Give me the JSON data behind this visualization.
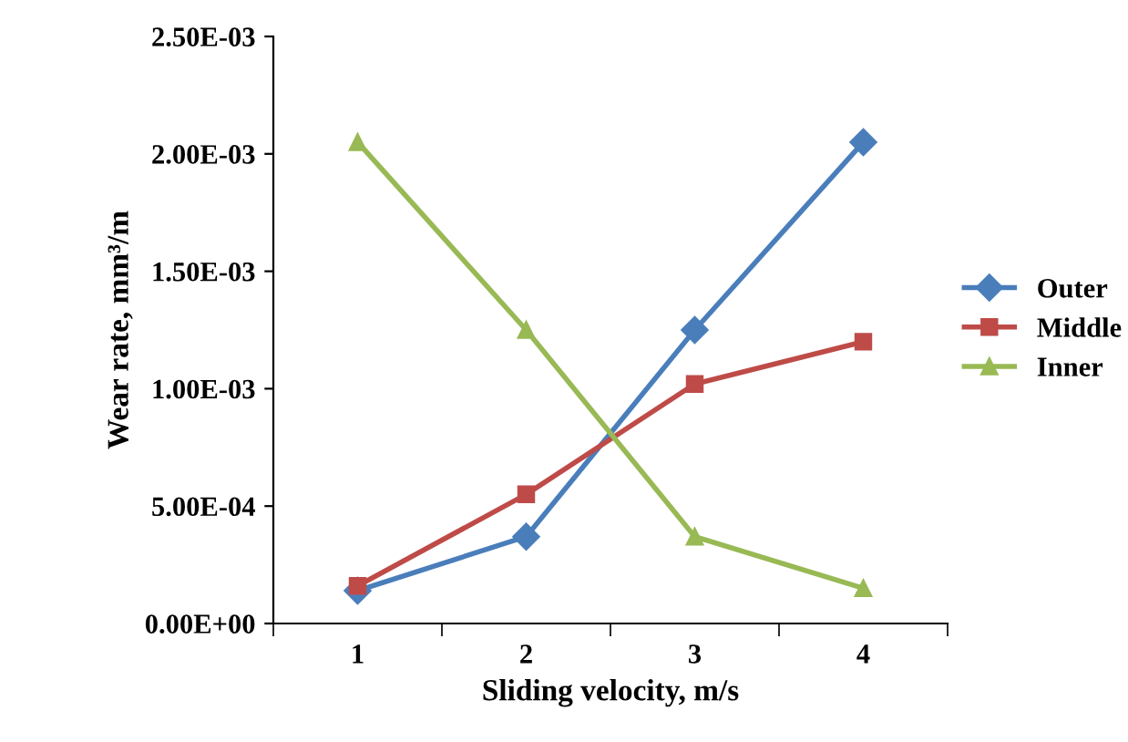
{
  "chart_data": {
    "type": "line",
    "xlabel": "Sliding velocity, m/s",
    "ylabel": "Wear rate, mm³/m",
    "categories": [
      "1",
      "2",
      "3",
      "4"
    ],
    "series": [
      {
        "name": "Outer",
        "color": "#4a7ebb",
        "marker": "diamond",
        "values": [
          0.00014,
          0.00037,
          0.00125,
          0.00205
        ]
      },
      {
        "name": "Middle",
        "color": "#be4b48",
        "marker": "square",
        "values": [
          0.00016,
          0.00055,
          0.00102,
          0.0012
        ]
      },
      {
        "name": "Inner",
        "color": "#98b954",
        "marker": "triangle",
        "values": [
          0.00205,
          0.00125,
          0.00037,
          0.00015
        ]
      }
    ],
    "ylim": [
      0,
      0.0025
    ],
    "yticks": [
      {
        "value": 0,
        "label": "0.00E+00"
      },
      {
        "value": 0.0005,
        "label": "5.00E-04"
      },
      {
        "value": 0.001,
        "label": "1.00E-03"
      },
      {
        "value": 0.0015,
        "label": "1.50E-03"
      },
      {
        "value": 0.002,
        "label": "2.00E-03"
      },
      {
        "value": 0.0025,
        "label": "2.50E-03"
      }
    ],
    "grid": false,
    "legend": "right"
  }
}
